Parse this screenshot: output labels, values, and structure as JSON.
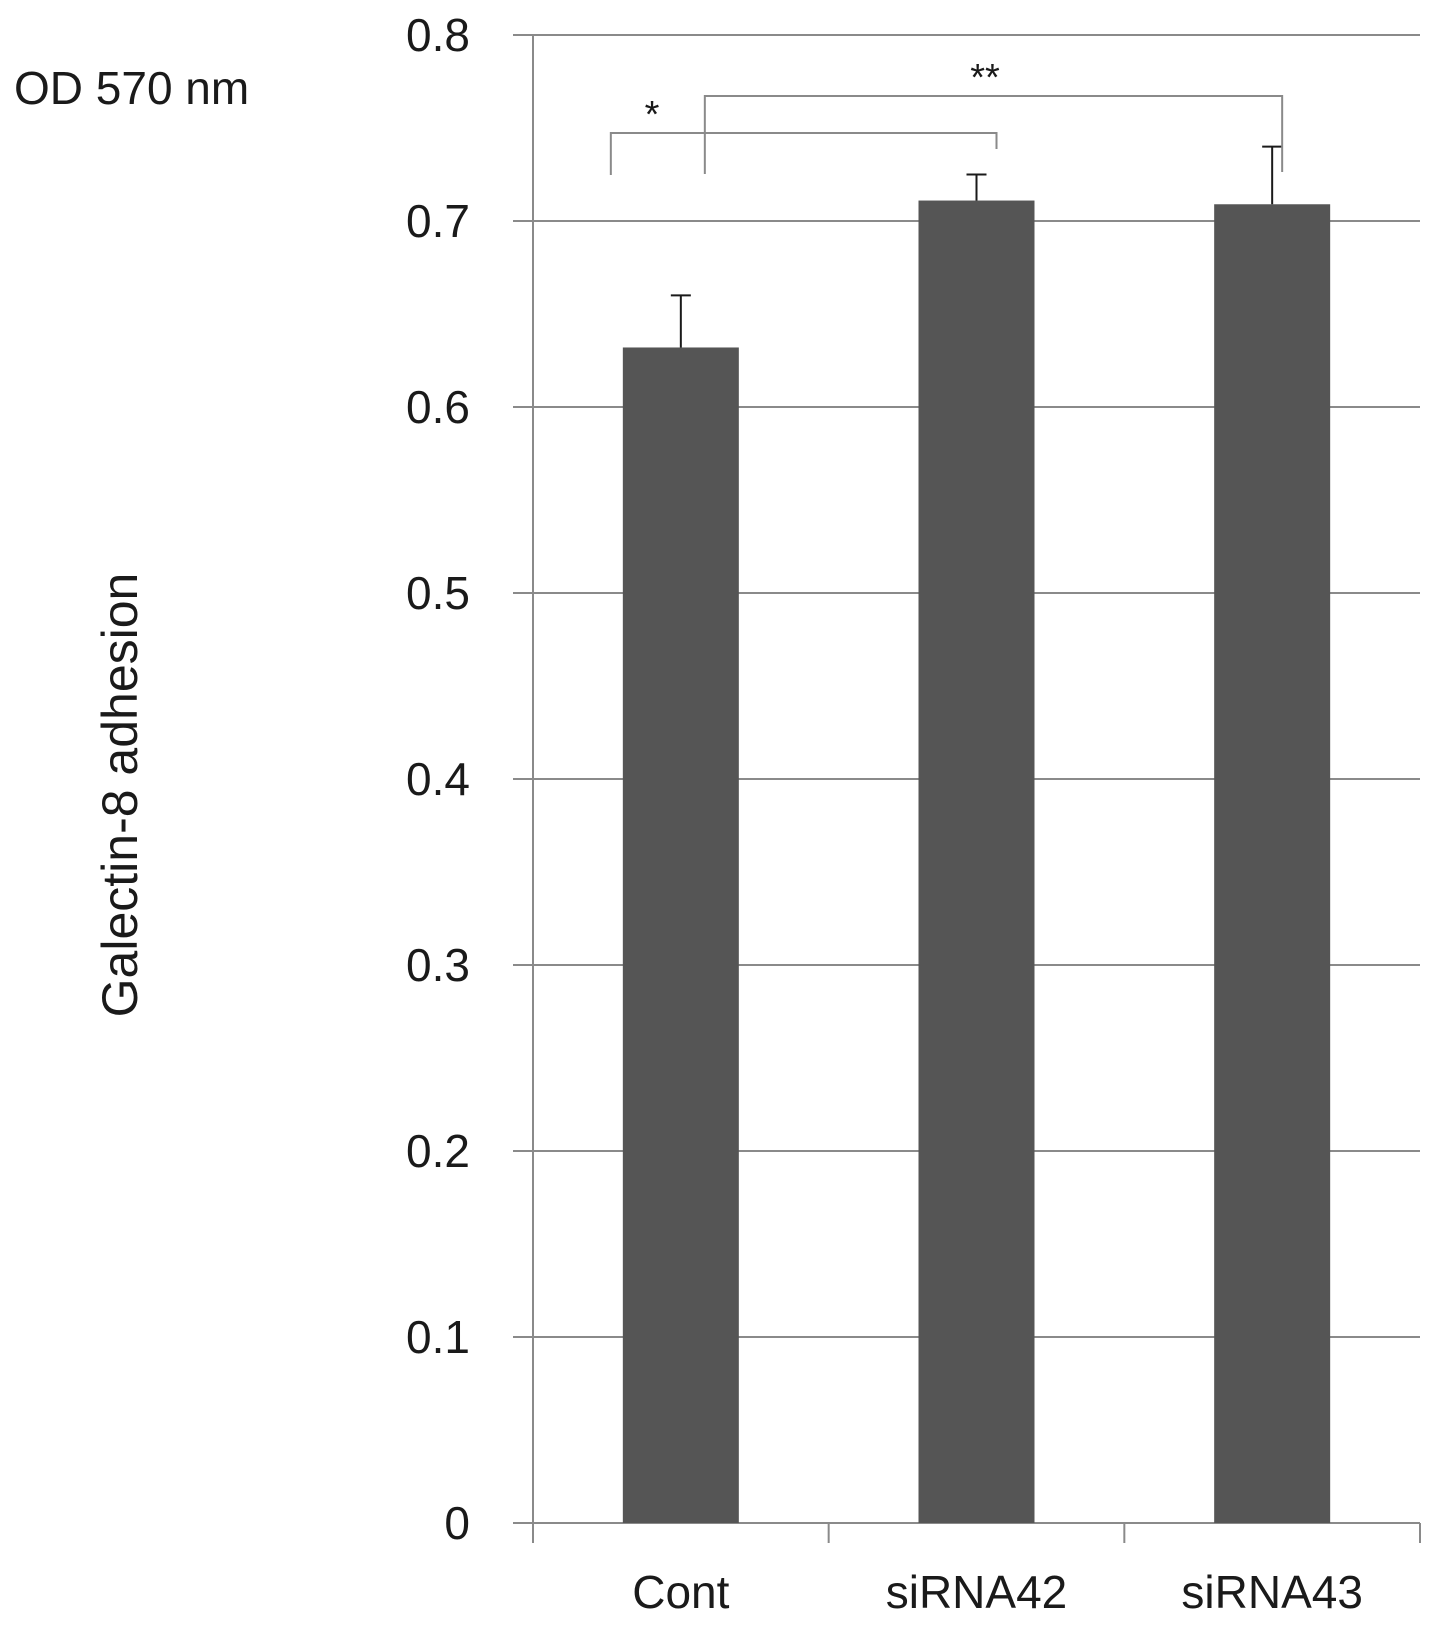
{
  "chart_data": {
    "type": "bar",
    "ylabel": "Galectin-8 adhesion",
    "unit_label": "OD 570 nm",
    "ylim": [
      0,
      0.8
    ],
    "yticks": [
      0,
      0.1,
      0.2,
      0.3,
      0.4,
      0.5,
      0.6,
      0.7,
      0.8
    ],
    "ytick_labels": [
      "0",
      "0.1",
      "0.2",
      "0.3",
      "0.4",
      "0.5",
      "0.6",
      "0.7",
      "0.8"
    ],
    "grid": true,
    "categories": [
      "Cont",
      "siRNA42",
      "siRNA43"
    ],
    "values": [
      0.632,
      0.711,
      0.709
    ],
    "errors": [
      0.028,
      0.014,
      0.031
    ],
    "bar_color": "#555555",
    "significance": [
      {
        "from": "Cont",
        "to": "siRNA42",
        "label": "*"
      },
      {
        "from": "Cont",
        "to": "siRNA43",
        "label": "**"
      }
    ]
  }
}
